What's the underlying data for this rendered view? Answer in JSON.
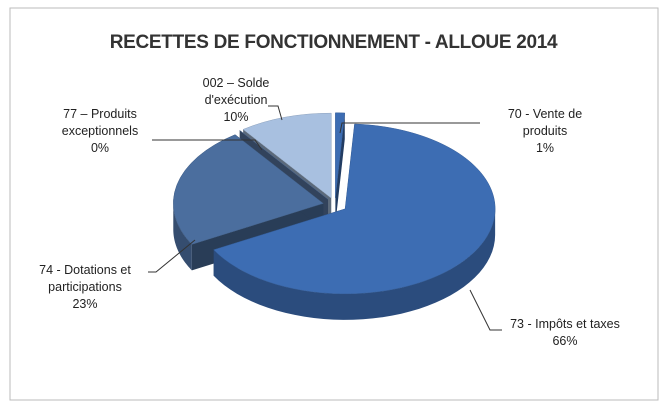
{
  "chart_data": {
    "type": "pie",
    "title": "RECETTES DE FONCTIONNEMENT - ALLOUE 2014",
    "categories": [
      "70 - Vente de produits",
      "73 - Impôts et taxes",
      "74 - Dotations et participations",
      "77 – Produits exceptionnels",
      "002 – Solde d'exécution"
    ],
    "values": [
      1,
      66,
      23,
      0,
      10
    ],
    "value_labels": [
      "1%",
      "66%",
      "23%",
      "0%",
      "10%"
    ],
    "colors": [
      "#3d6db3",
      "#3d6db3",
      "#4b6e9e",
      "#5a7aa8",
      "#a8c0e0"
    ]
  }
}
